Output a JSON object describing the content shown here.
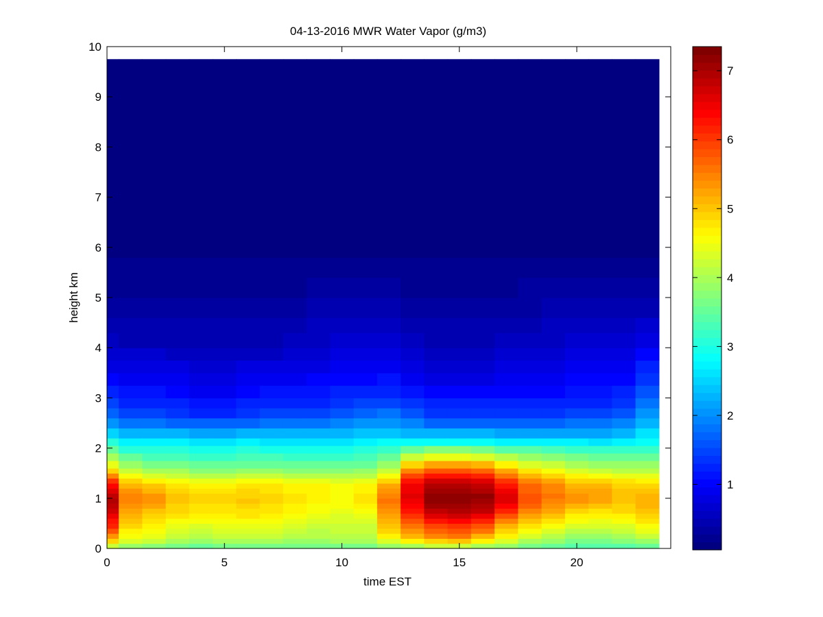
{
  "chart_data": {
    "type": "heatmap",
    "title": "04-13-2016 MWR Water Vapor (g/m3)",
    "xlabel": "time EST",
    "ylabel": "height km",
    "xlim": [
      0,
      24
    ],
    "ylim": [
      0,
      10
    ],
    "x_ticks": [
      0,
      5,
      10,
      15,
      20
    ],
    "y_ticks": [
      0,
      1,
      2,
      3,
      4,
      5,
      6,
      7,
      8,
      9,
      10
    ],
    "colorbar": {
      "colormap": "jet",
      "range": [
        0.05,
        7.35
      ],
      "ticks": [
        1,
        2,
        3,
        4,
        5,
        6,
        7
      ]
    },
    "x": [
      0,
      1,
      2,
      3,
      4,
      5,
      6,
      7,
      8,
      9,
      10,
      11,
      12,
      13,
      14,
      15,
      16,
      17,
      18,
      19,
      20,
      21,
      22,
      23
    ],
    "heights": [
      0.0,
      0.1,
      0.2,
      0.3,
      0.4,
      0.5,
      0.6,
      0.7,
      0.8,
      0.9,
      1.0,
      1.1,
      1.2,
      1.3,
      1.4,
      1.5,
      1.6,
      1.75,
      1.9,
      2.05,
      2.2,
      2.4,
      2.6,
      2.8,
      3.0,
      3.25,
      3.5,
      3.75,
      4.0,
      4.3,
      4.6,
      5.0,
      5.4,
      5.8,
      6.2,
      6.6,
      7.0,
      7.5,
      8.0,
      8.5,
      9.0,
      9.5,
      9.75
    ],
    "levels_km": [
      0.0,
      0.2,
      0.4,
      0.7,
      1.0,
      1.3,
      1.6,
      1.9,
      2.2,
      2.6,
      3.0,
      3.5,
      4.0,
      4.5,
      5.0,
      5.5,
      6.0,
      7.0,
      9.75
    ],
    "profiles": [
      [
        3.9,
        5.2,
        6.0,
        6.6,
        7.0,
        6.3,
        4.6,
        3.8,
        2.8,
        1.8,
        1.3,
        0.9,
        0.6,
        0.4,
        0.3,
        0.2,
        0.15,
        0.1,
        0.05
      ],
      [
        3.7,
        4.5,
        4.8,
        5.2,
        5.5,
        5.1,
        4.0,
        3.3,
        2.5,
        1.6,
        1.2,
        0.85,
        0.55,
        0.4,
        0.3,
        0.2,
        0.15,
        0.1,
        0.05
      ],
      [
        3.6,
        4.4,
        4.6,
        5.0,
        5.4,
        4.9,
        3.8,
        3.2,
        2.5,
        1.6,
        1.2,
        0.85,
        0.55,
        0.4,
        0.3,
        0.2,
        0.15,
        0.1,
        0.05
      ],
      [
        3.5,
        4.1,
        4.4,
        4.8,
        5.1,
        4.7,
        3.8,
        3.2,
        2.5,
        1.5,
        1.1,
        0.8,
        0.55,
        0.4,
        0.3,
        0.2,
        0.15,
        0.1,
        0.05
      ],
      [
        3.4,
        4.0,
        4.3,
        4.7,
        4.9,
        4.6,
        3.6,
        3.1,
        2.4,
        1.4,
        1.0,
        0.75,
        0.5,
        0.4,
        0.3,
        0.2,
        0.15,
        0.1,
        0.05
      ],
      [
        3.5,
        4.1,
        4.4,
        4.7,
        4.9,
        4.6,
        3.6,
        3.1,
        2.4,
        1.4,
        1.0,
        0.7,
        0.5,
        0.4,
        0.3,
        0.2,
        0.15,
        0.1,
        0.05
      ],
      [
        3.5,
        4.1,
        4.4,
        4.8,
        5.0,
        4.7,
        3.7,
        3.2,
        2.5,
        1.5,
        1.1,
        0.8,
        0.55,
        0.4,
        0.3,
        0.2,
        0.15,
        0.1,
        0.05
      ],
      [
        3.5,
        4.1,
        4.4,
        4.7,
        4.9,
        4.7,
        3.7,
        3.1,
        2.5,
        1.6,
        1.2,
        0.8,
        0.55,
        0.4,
        0.3,
        0.2,
        0.15,
        0.1,
        0.05
      ],
      [
        3.5,
        4.0,
        4.3,
        4.6,
        4.8,
        4.6,
        3.6,
        3.1,
        2.5,
        1.6,
        1.2,
        0.85,
        0.6,
        0.45,
        0.3,
        0.2,
        0.15,
        0.1,
        0.05
      ],
      [
        3.5,
        4.0,
        4.2,
        4.5,
        4.7,
        4.6,
        3.6,
        3.1,
        2.5,
        1.6,
        1.2,
        0.9,
        0.65,
        0.5,
        0.35,
        0.2,
        0.15,
        0.1,
        0.05
      ],
      [
        3.5,
        4.1,
        4.2,
        4.4,
        4.6,
        4.5,
        3.6,
        3.1,
        2.5,
        1.7,
        1.3,
        1.0,
        0.7,
        0.5,
        0.35,
        0.2,
        0.15,
        0.1,
        0.05
      ],
      [
        3.5,
        4.1,
        4.2,
        4.5,
        4.8,
        4.6,
        3.7,
        3.2,
        2.6,
        1.8,
        1.3,
        1.0,
        0.7,
        0.5,
        0.35,
        0.2,
        0.15,
        0.1,
        0.05
      ],
      [
        3.6,
        4.5,
        5.0,
        5.3,
        5.6,
        5.1,
        4.0,
        3.4,
        2.6,
        1.9,
        1.4,
        1.0,
        0.7,
        0.5,
        0.35,
        0.2,
        0.15,
        0.1,
        0.05
      ],
      [
        3.7,
        5.0,
        5.5,
        6.2,
        6.6,
        6.5,
        5.3,
        3.9,
        2.5,
        1.7,
        1.2,
        0.8,
        0.6,
        0.4,
        0.3,
        0.2,
        0.15,
        0.1,
        0.05
      ],
      [
        3.8,
        5.3,
        5.8,
        6.8,
        7.3,
        6.9,
        5.6,
        4.1,
        2.5,
        1.5,
        1.1,
        0.75,
        0.5,
        0.4,
        0.3,
        0.2,
        0.15,
        0.1,
        0.05
      ],
      [
        3.8,
        5.4,
        5.9,
        6.9,
        7.3,
        6.9,
        5.6,
        4.1,
        2.5,
        1.5,
        1.1,
        0.7,
        0.5,
        0.4,
        0.3,
        0.2,
        0.15,
        0.1,
        0.05
      ],
      [
        3.7,
        5.0,
        5.7,
        6.7,
        7.2,
        6.8,
        5.5,
        4.0,
        2.5,
        1.5,
        1.1,
        0.75,
        0.55,
        0.4,
        0.3,
        0.2,
        0.15,
        0.1,
        0.05
      ],
      [
        3.6,
        4.5,
        5.0,
        6.0,
        6.7,
        6.2,
        5.0,
        3.8,
        2.4,
        1.5,
        1.1,
        0.8,
        0.6,
        0.45,
        0.3,
        0.2,
        0.15,
        0.1,
        0.05
      ],
      [
        3.5,
        4.2,
        4.6,
        5.4,
        5.9,
        5.6,
        4.6,
        3.7,
        2.4,
        1.5,
        1.1,
        0.8,
        0.6,
        0.45,
        0.35,
        0.25,
        0.15,
        0.1,
        0.05
      ],
      [
        3.4,
        4.0,
        4.4,
        5.1,
        5.6,
        5.4,
        4.4,
        3.6,
        2.4,
        1.5,
        1.1,
        0.85,
        0.65,
        0.5,
        0.35,
        0.25,
        0.15,
        0.1,
        0.05
      ],
      [
        3.3,
        3.8,
        4.2,
        4.8,
        5.4,
        5.1,
        4.2,
        3.5,
        2.4,
        1.6,
        1.2,
        0.9,
        0.7,
        0.5,
        0.4,
        0.25,
        0.15,
        0.1,
        0.05
      ],
      [
        3.3,
        3.8,
        4.2,
        4.7,
        5.3,
        5.1,
        4.1,
        3.4,
        2.4,
        1.6,
        1.2,
        0.9,
        0.7,
        0.55,
        0.4,
        0.25,
        0.15,
        0.1,
        0.05
      ],
      [
        3.3,
        3.9,
        4.3,
        4.8,
        5.1,
        4.9,
        4.0,
        3.4,
        2.5,
        1.7,
        1.3,
        1.0,
        0.75,
        0.55,
        0.4,
        0.25,
        0.15,
        0.1,
        0.05
      ],
      [
        3.4,
        4.1,
        4.5,
        5.0,
        5.2,
        4.8,
        4.0,
        3.4,
        2.7,
        2.2,
        1.7,
        1.3,
        0.9,
        0.6,
        0.4,
        0.25,
        0.15,
        0.1,
        0.05
      ]
    ]
  }
}
